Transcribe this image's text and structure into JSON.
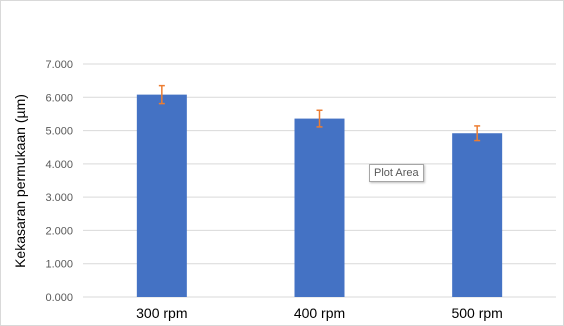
{
  "chart_data": {
    "type": "bar",
    "categories": [
      "300 rpm",
      "400 rpm",
      "500 rpm"
    ],
    "values": [
      6.08,
      5.36,
      4.92
    ],
    "error": [
      0.27,
      0.25,
      0.22
    ],
    "ylabel": "Kekasaran permukaan (µm)",
    "xlabel": "",
    "ylim": [
      0,
      7
    ],
    "y_ticks": [
      "0.000",
      "1.000",
      "2.000",
      "3.000",
      "4.000",
      "5.000",
      "6.000",
      "7.000"
    ],
    "grid": true,
    "legend": "none",
    "colors": {
      "bar": "#4472c4",
      "error_bar": "#ed7d31",
      "grid": "#d9d9d9"
    }
  },
  "tooltip": {
    "text": "Plot Area"
  }
}
